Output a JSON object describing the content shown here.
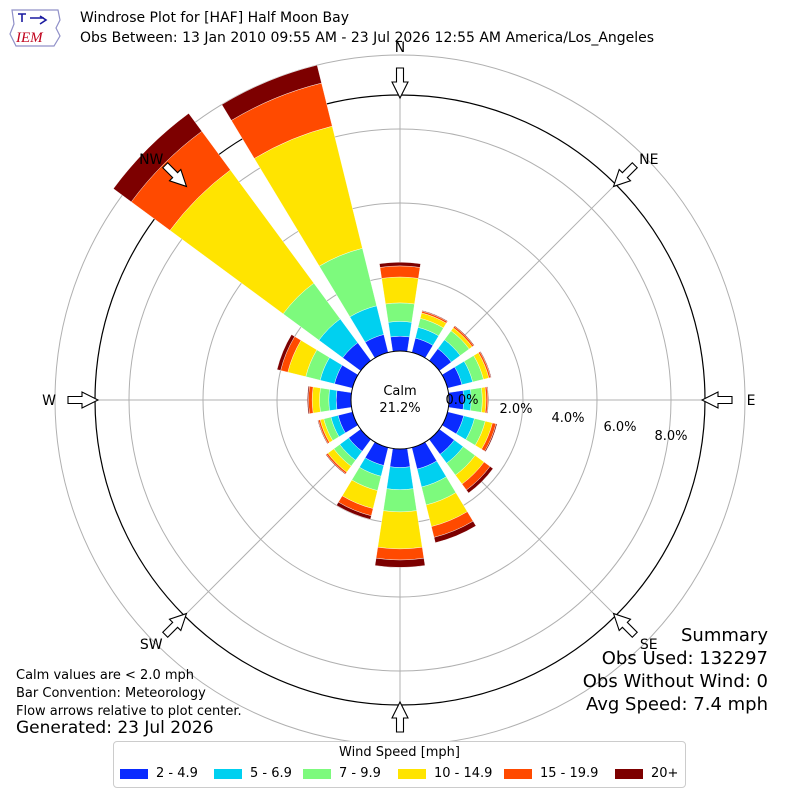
{
  "header": {
    "logo_text": "IEM",
    "title_line1": "Windrose Plot for [HAF] Half Moon Bay",
    "title_line2": "Obs Between: 13 Jan 2010 09:55 AM - 23 Jul 2026 12:55 AM America/Los_Angeles"
  },
  "calm": {
    "label": "Calm",
    "value": "21.2%"
  },
  "notes": {
    "line1": "Calm values are < 2.0 mph",
    "line2": "Bar Convention: Meteorology",
    "line3": "Flow arrows relative to plot center.",
    "generated": "Generated: 23 Jul 2026"
  },
  "summary": {
    "title": "Summary",
    "obs_used": "Obs Used: 132297",
    "obs_without_wind": "Obs Without Wind: 0",
    "avg_speed": "Avg Speed: 7.4 mph"
  },
  "legend": {
    "title": "Wind Speed [mph]",
    "items": [
      {
        "label": "2 - 4.9",
        "color": "#0a2bff"
      },
      {
        "label": "5 - 6.9",
        "color": "#00d0f0"
      },
      {
        "label": "7 - 9.9",
        "color": "#7dfa7d"
      },
      {
        "label": "10 - 14.9",
        "color": "#ffe400"
      },
      {
        "label": "15 - 19.9",
        "color": "#ff4a00"
      },
      {
        "label": "20+",
        "color": "#7d0000"
      }
    ]
  },
  "chart_data": {
    "type": "windrose",
    "title": "Windrose Plot for [HAF] Half Moon Bay",
    "unit": "%",
    "calm_percent": 21.2,
    "rlim": [
      0,
      9
    ],
    "r_ticks": [
      0,
      2,
      4,
      6,
      8
    ],
    "r_tick_labels": [
      "0.0%",
      "2.0%",
      "4.0%",
      "6.0%",
      "8.0%"
    ],
    "directions": [
      "N",
      "NNE",
      "NE",
      "ENE",
      "E",
      "ESE",
      "SE",
      "SSE",
      "S",
      "SSW",
      "SW",
      "WSW",
      "W",
      "WNW",
      "NW",
      "NNW"
    ],
    "compass_labels": [
      "N",
      "NE",
      "E",
      "SE",
      "S",
      "SW",
      "W",
      "NW"
    ],
    "series": [
      {
        "name": "2 - 4.9",
        "values": [
          0.4,
          0.4,
          0.4,
          0.4,
          0.4,
          0.45,
          0.5,
          0.6,
          0.5,
          0.5,
          0.4,
          0.4,
          0.4,
          0.5,
          0.6,
          0.5
        ]
      },
      {
        "name": "5 - 6.9",
        "values": [
          0.4,
          0.3,
          0.3,
          0.3,
          0.2,
          0.3,
          0.3,
          0.5,
          0.6,
          0.3,
          0.3,
          0.2,
          0.2,
          0.4,
          0.8,
          0.8
        ]
      },
      {
        "name": "7 - 9.9",
        "values": [
          0.5,
          0.25,
          0.3,
          0.3,
          0.3,
          0.3,
          0.4,
          0.5,
          0.6,
          0.4,
          0.2,
          0.2,
          0.25,
          0.4,
          1.2,
          1.6
        ]
      },
      {
        "name": "10 - 14.9",
        "values": [
          0.7,
          0.15,
          0.1,
          0.15,
          0.1,
          0.2,
          0.3,
          0.6,
          1.0,
          0.5,
          0.2,
          0.1,
          0.2,
          0.5,
          3.8,
          3.4
        ]
      },
      {
        "name": "15 - 19.9",
        "values": [
          0.3,
          0.05,
          0.05,
          0.05,
          0.05,
          0.1,
          0.2,
          0.3,
          0.3,
          0.2,
          0.05,
          0.05,
          0.1,
          0.2,
          1.3,
          1.2
        ]
      },
      {
        "name": "20+",
        "values": [
          0.1,
          0.02,
          0.02,
          0.02,
          0.02,
          0.03,
          0.1,
          0.15,
          0.2,
          0.1,
          0.02,
          0.02,
          0.03,
          0.1,
          0.6,
          0.5
        ]
      }
    ],
    "legend_position": "bottom",
    "grid": true
  }
}
